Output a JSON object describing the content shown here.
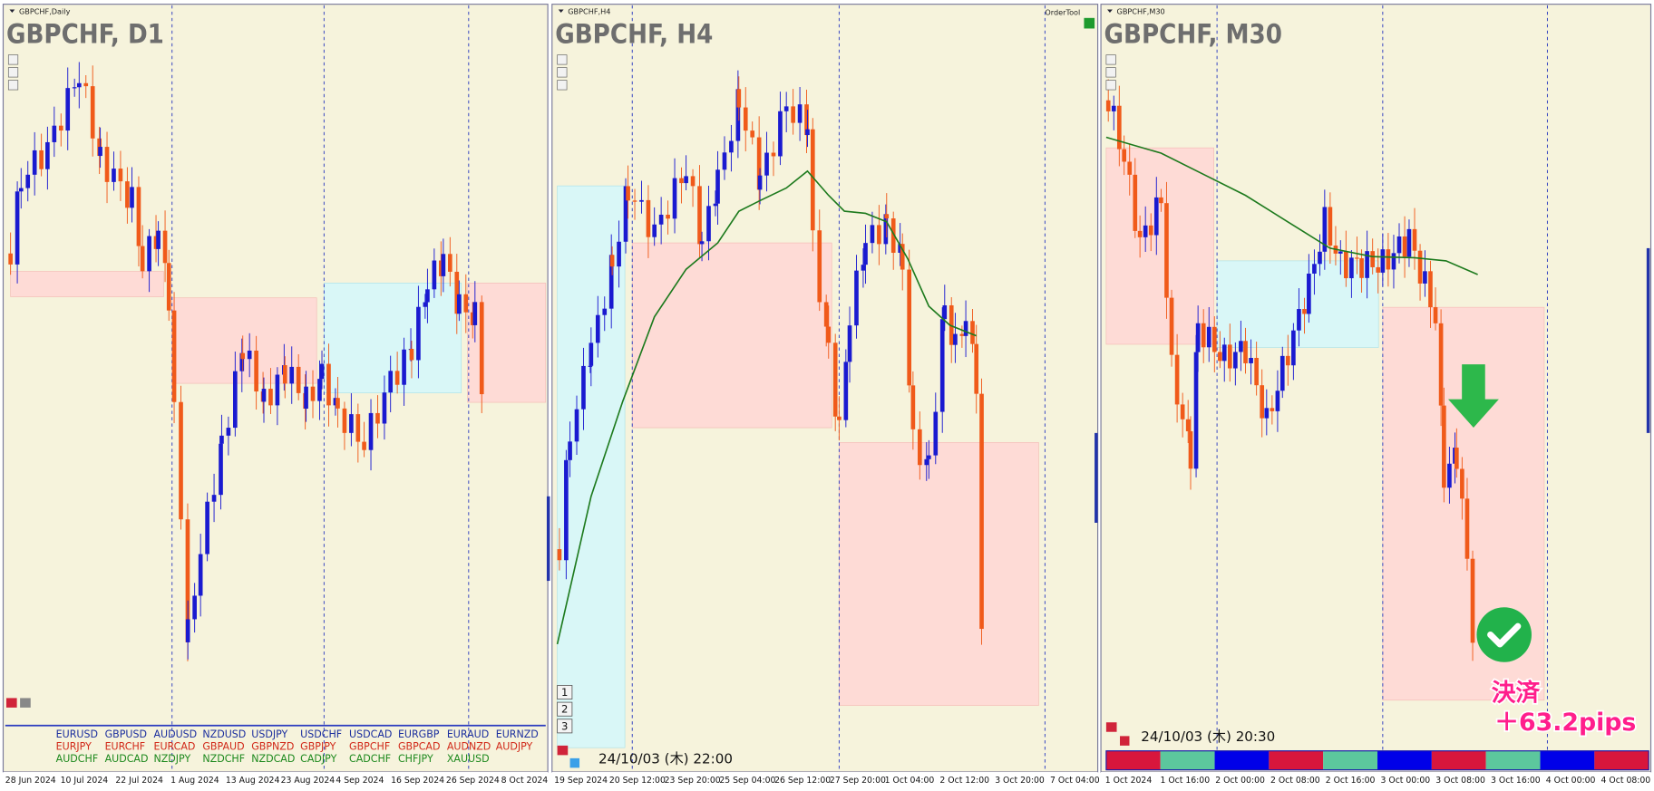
{
  "panels": [
    {
      "window_label": "GBPCHF,Daily",
      "title": "GBPCHF, D1",
      "x_labels": [
        "28 Jun 2024",
        "10 Jul 2024",
        "22 Jul 2024",
        "1 Aug 2024",
        "13 Aug 2024",
        "23 Aug 2024",
        "4 Sep 2024",
        "16 Sep 2024",
        "26 Sep 2024",
        "8 Oct 2024"
      ],
      "symbols": [
        [
          "EURUSD",
          "GBPUSD",
          "AUDUSD",
          "NZDUSD",
          "USDJPY",
          "USDCHF",
          "USDCAD",
          "EURGBP",
          "EURAUD",
          "EURNZD"
        ],
        [
          "EURJPY",
          "EURCHF",
          "EURCAD",
          "GBPAUD",
          "GBPNZD",
          "GBPJPY",
          "GBPCHF",
          "GBPCAD",
          "AUDNZD",
          "AUDJPY"
        ],
        [
          "AUDCHF",
          "AUDCAD",
          "NZDJPY",
          "NZDCHF",
          "NZDCAD",
          "CADJPY",
          "CADCHF",
          "CHFJPY",
          "XAUUSD"
        ]
      ]
    },
    {
      "window_label": "GBPCHF,H4",
      "title": "GBPCHF, H4",
      "order_tool": "OrderTool",
      "buttons": [
        "1",
        "2",
        "3"
      ],
      "timestamp": "24/10/03 (木) 22:00",
      "x_labels": [
        "19 Sep 2024",
        "20 Sep 12:00",
        "23 Sep 20:00",
        "25 Sep 04:00",
        "26 Sep 12:00",
        "27 Sep 20:00",
        "1 Oct 04:00",
        "2 Oct 12:00",
        "3 Oct 20:00",
        "7 Oct 04:00"
      ]
    },
    {
      "window_label": "GBPCHF,M30",
      "title": "GBPCHF, M30",
      "timestamp": "24/10/03 (木) 20:30",
      "annotation": [
        "決済",
        "＋63.2pips"
      ],
      "x_labels": [
        "1 Oct 2024",
        "1 Oct 16:00",
        "2 Oct 00:00",
        "2 Oct 08:00",
        "2 Oct 16:00",
        "3 Oct 00:00",
        "3 Oct 08:00",
        "3 Oct 16:00",
        "4 Oct 00:00",
        "4 Oct 08:00"
      ]
    }
  ]
}
